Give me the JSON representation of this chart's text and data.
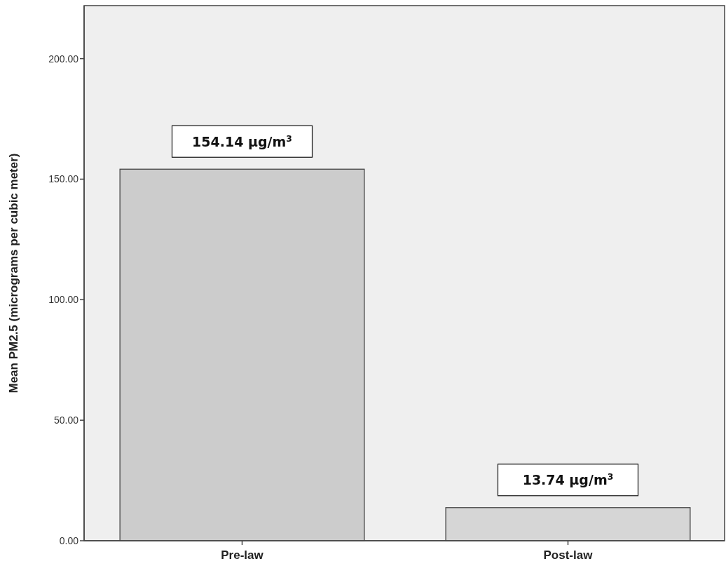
{
  "chart_data": {
    "type": "bar",
    "ylabel": "Mean PM2.5 (micrograms per cubic meter)",
    "categories": [
      "Pre-law",
      "Post-law"
    ],
    "values": [
      154.14,
      13.74
    ],
    "colors": [
      "#cccccc",
      "#d6d6d6"
    ],
    "value_labels": [
      "154.14 μg/m$^{3}$",
      "13.74 μg/m$^{3}$"
    ],
    "ylim": [
      0,
      222
    ],
    "yticks": [
      {
        "value": 0,
        "label": "0.00"
      },
      {
        "value": 50,
        "label": "50.00"
      },
      {
        "value": 100,
        "label": "100.00"
      },
      {
        "value": 150,
        "label": "150.00"
      },
      {
        "value": 200,
        "label": "200.00"
      }
    ],
    "grid": false
  }
}
